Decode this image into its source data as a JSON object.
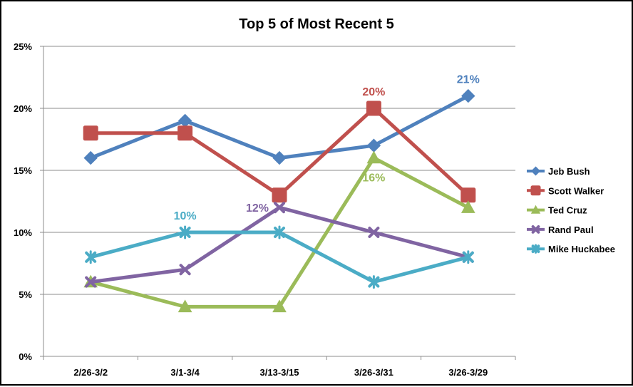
{
  "chart_data": {
    "type": "line",
    "title": "Top 5 of Most Recent 5",
    "categories": [
      "2/26-3/2",
      "3/1-3/4",
      "3/13-3/15",
      "3/26-3/31",
      "3/26-3/29"
    ],
    "yticks": [
      "0%",
      "5%",
      "10%",
      "15%",
      "20%",
      "25%"
    ],
    "ylim": [
      0,
      25
    ],
    "grid": true,
    "legend_position": "right",
    "series": [
      {
        "name": "Jeb Bush",
        "color": "#4F81BD",
        "marker": "diamond",
        "values": [
          16,
          19,
          16,
          17,
          21
        ]
      },
      {
        "name": "Scott Walker",
        "color": "#C0504D",
        "marker": "square",
        "values": [
          18,
          18,
          13,
          20,
          13
        ]
      },
      {
        "name": "Ted Cruz",
        "color": "#9BBB59",
        "marker": "triangle",
        "values": [
          6,
          4,
          4,
          16,
          12
        ]
      },
      {
        "name": "Rand Paul",
        "color": "#8064A2",
        "marker": "x",
        "values": [
          6,
          7,
          12,
          10,
          8
        ]
      },
      {
        "name": "Mike Huckabee",
        "color": "#4BACC6",
        "marker": "star",
        "values": [
          8,
          10,
          10,
          6,
          8
        ]
      }
    ],
    "annotations": [
      {
        "text": "21%",
        "series": "Jeb Bush",
        "index": 4,
        "position": "above"
      },
      {
        "text": "20%",
        "series": "Scott Walker",
        "index": 3,
        "position": "above"
      },
      {
        "text": "16%",
        "series": "Ted Cruz",
        "index": 3,
        "position": "below"
      },
      {
        "text": "12%",
        "series": "Rand Paul",
        "index": 2,
        "position": "left"
      },
      {
        "text": "10%",
        "series": "Mike Huckabee",
        "index": 1,
        "position": "above"
      }
    ]
  }
}
